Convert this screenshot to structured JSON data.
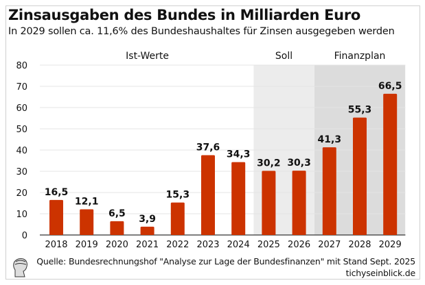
{
  "header": {
    "title": "Zinsausgaben des Bundes in Milliarden Euro",
    "subtitle": "In 2029 sollen ca. 11,6% des Bundeshaushaltes für Zinsen ausgegeben werden"
  },
  "footer": {
    "source": "Quelle: Bundesrechnungshof \"Analyse zur Lage der Bundesfinanzen\" mit Stand Sept. 2025",
    "site": "tichyseinblick.de"
  },
  "chart_data": {
    "type": "bar",
    "title": "Zinsausgaben des Bundes in Milliarden Euro",
    "categories": [
      "2018",
      "2019",
      "2020",
      "2021",
      "2022",
      "2023",
      "2024",
      "2025",
      "2026",
      "2027",
      "2028",
      "2029"
    ],
    "values": [
      16.5,
      12.1,
      6.5,
      3.9,
      15.3,
      37.6,
      34.3,
      30.2,
      30.3,
      41.3,
      55.3,
      66.5
    ],
    "labels": [
      "16,5",
      "12,1",
      "6,5",
      "3,9",
      "15,3",
      "37,6",
      "34,3",
      "30,2",
      "30,3",
      "41,3",
      "55,3",
      "66,5"
    ],
    "ylim": [
      0,
      80
    ],
    "yticks": [
      "0",
      "10",
      "20",
      "30",
      "40",
      "50",
      "60",
      "70",
      "80"
    ],
    "grid": true,
    "bar_color": "#cc3300",
    "sections": [
      {
        "label": "Ist-Werte",
        "from": "2018",
        "to": "2024",
        "shade": "#ffffff"
      },
      {
        "label": "Soll",
        "from": "2025",
        "to": "2026",
        "shade": "#ececec"
      },
      {
        "label": "Finanzplan",
        "from": "2027",
        "to": "2029",
        "shade": "#dcdcdc"
      }
    ]
  }
}
